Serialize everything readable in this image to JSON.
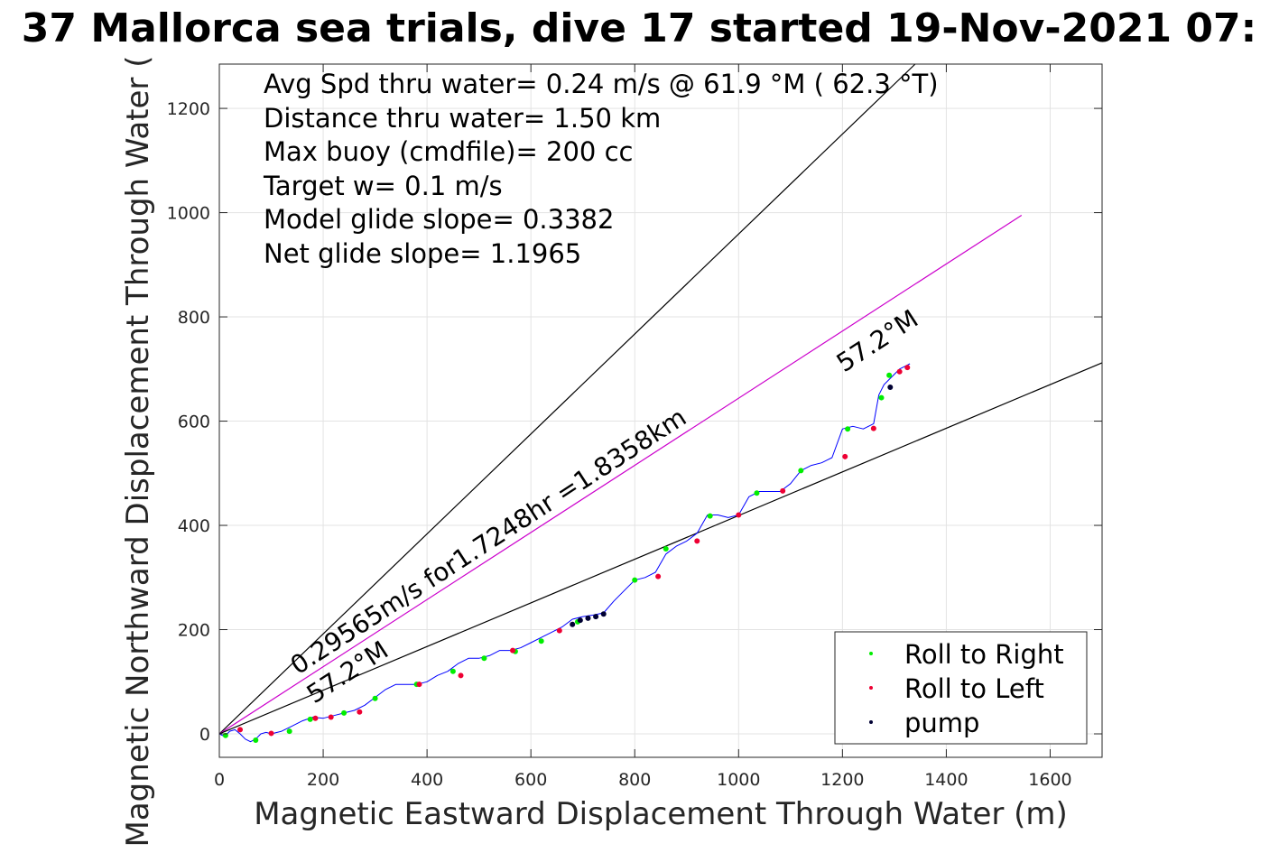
{
  "chart_data": {
    "type": "line",
    "title": "37 Mallorca sea trials, dive 17 started 19-Nov-2021 07:",
    "xlabel": "Magnetic Eastward Displacement Through Water (m)",
    "ylabel": "Magnetic Northward Displacement Through Water (",
    "xlim": [
      0,
      1700
    ],
    "ylim": [
      -45,
      1285
    ],
    "xticks": [
      0,
      200,
      400,
      600,
      800,
      1000,
      1200,
      1400,
      1600
    ],
    "yticks": [
      0,
      200,
      400,
      600,
      800,
      1000,
      1200
    ],
    "grid": true,
    "stats": [
      "Avg Spd thru water=  0.24 m/s @  61.9 °M ( 62.3 °T)",
      "Distance thru water=  1.50 km",
      "Max buoy (cmdfile)= 200 cc",
      "Target w= 0.1 m/s",
      "Model glide slope= 0.3382",
      "Net glide slope= 1.1965"
    ],
    "annotations": {
      "speed_label": "0.29565m/s for1.7248hr =1.8358km",
      "heading_label_far": "57.2°M",
      "heading_label_near": "57.2°M"
    },
    "reference_lines": [
      {
        "name": "upper bound",
        "color": "#000000",
        "x": [
          0,
          1340
        ],
        "y": [
          0,
          1285
        ]
      },
      {
        "name": "target course",
        "color": "#cc00cc",
        "x": [
          0,
          1545
        ],
        "y": [
          0,
          995
        ]
      },
      {
        "name": "lower bound",
        "color": "#000000",
        "x": [
          0,
          1700
        ],
        "y": [
          0,
          712
        ]
      }
    ],
    "track": {
      "color": "#0000ff",
      "x": [
        0,
        10,
        20,
        30,
        40,
        50,
        60,
        70,
        80,
        90,
        100,
        120,
        140,
        160,
        180,
        200,
        220,
        240,
        260,
        280,
        300,
        320,
        340,
        360,
        380,
        400,
        420,
        440,
        460,
        480,
        500,
        520,
        540,
        560,
        580,
        600,
        620,
        640,
        660,
        680,
        700,
        720,
        740,
        760,
        780,
        800,
        820,
        840,
        860,
        880,
        900,
        920,
        940,
        960,
        980,
        1000,
        1020,
        1040,
        1060,
        1080,
        1100,
        1120,
        1140,
        1160,
        1180,
        1200,
        1220,
        1240,
        1260,
        1270,
        1280,
        1290,
        1300,
        1310,
        1320,
        1330
      ],
      "y": [
        0,
        -5,
        5,
        8,
        0,
        -10,
        -15,
        -10,
        0,
        3,
        0,
        5,
        15,
        25,
        32,
        30,
        35,
        40,
        45,
        55,
        70,
        85,
        95,
        95,
        95,
        100,
        112,
        120,
        135,
        145,
        145,
        150,
        160,
        160,
        165,
        175,
        185,
        195,
        205,
        220,
        225,
        228,
        232,
        255,
        275,
        295,
        300,
        310,
        345,
        360,
        370,
        385,
        420,
        420,
        415,
        420,
        455,
        465,
        465,
        465,
        480,
        505,
        515,
        520,
        530,
        585,
        590,
        585,
        595,
        650,
        670,
        680,
        690,
        700,
        705,
        710
      ]
    },
    "roll_right": {
      "name": "Roll to Right",
      "color": "#00ee00",
      "x": [
        12,
        70,
        135,
        175,
        240,
        300,
        380,
        450,
        510,
        570,
        620,
        690,
        800,
        860,
        945,
        1035,
        1120,
        1210,
        1275,
        1290
      ],
      "y": [
        -3,
        -12,
        5,
        28,
        40,
        68,
        95,
        120,
        145,
        158,
        178,
        215,
        295,
        355,
        418,
        462,
        505,
        585,
        645,
        688
      ]
    },
    "roll_left": {
      "name": "Roll to Left",
      "color": "#ee0033",
      "x": [
        40,
        100,
        185,
        215,
        270,
        385,
        465,
        565,
        655,
        845,
        920,
        1000,
        1085,
        1205,
        1260,
        1310,
        1325
      ],
      "y": [
        8,
        1,
        30,
        32,
        42,
        95,
        112,
        160,
        198,
        302,
        370,
        420,
        466,
        532,
        586,
        695,
        703
      ]
    },
    "pump": {
      "name": "pump",
      "color": "#000033",
      "x": [
        680,
        695,
        710,
        725,
        740,
        1292
      ],
      "y": [
        210,
        218,
        222,
        225,
        230,
        665
      ]
    },
    "legend": {
      "position": "bottom-right"
    }
  }
}
